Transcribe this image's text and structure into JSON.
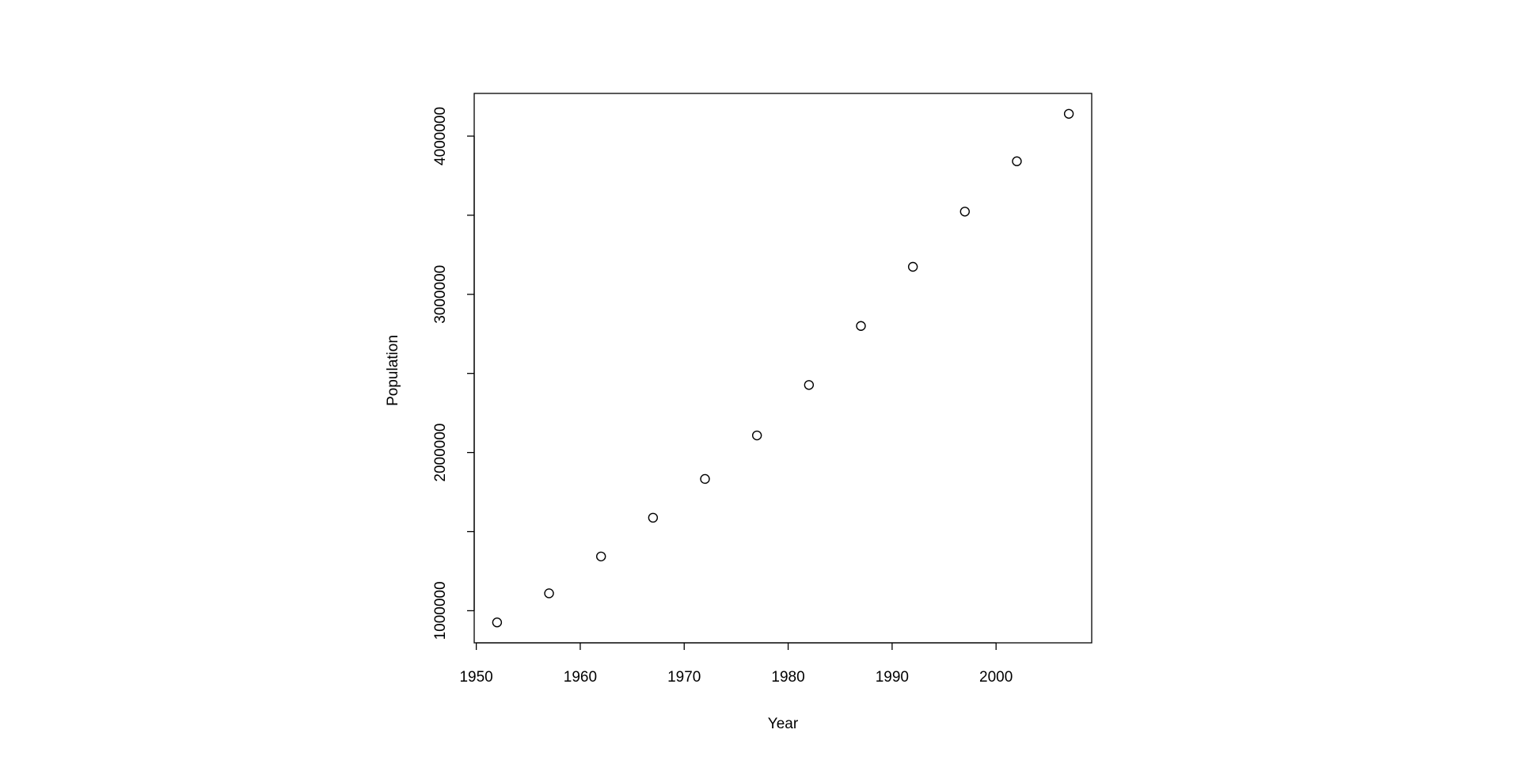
{
  "chart_data": {
    "type": "scatter",
    "x_label": "Year",
    "y_label": "Population",
    "x": [
      1952,
      1957,
      1962,
      1967,
      1972,
      1977,
      1982,
      1987,
      1992,
      1997,
      2002,
      2007
    ],
    "values": [
      926000,
      1110000,
      1343000,
      1588000,
      1833000,
      2108000,
      2427000,
      2800000,
      3174000,
      3523000,
      3841000,
      4141000
    ],
    "color": "#000000",
    "xlim": [
      1949.8,
      2009.2
    ],
    "xticks": [
      1950,
      1960,
      1970,
      1980,
      1990,
      2000
    ],
    "ylim": [
      797000,
      4270000
    ],
    "yticks": [
      1000000,
      2000000,
      3000000,
      4000000
    ],
    "yminor_ticks": [
      1500000,
      2500000,
      3500000
    ],
    "grid": false
  }
}
